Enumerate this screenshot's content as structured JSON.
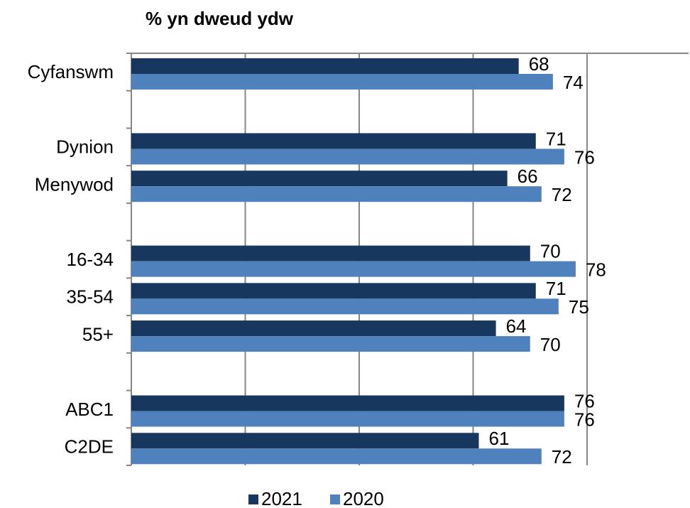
{
  "chart_data": {
    "type": "bar",
    "orientation": "horizontal",
    "title": "% yn dweud ydw",
    "categories": [
      "Cyfanswm",
      null,
      "Dynion",
      "Menywod",
      null,
      "16-34",
      "35-54",
      "55+",
      null,
      "ABC1",
      "C2DE"
    ],
    "series": [
      {
        "name": "2021",
        "color": "#17375e",
        "values": [
          68,
          null,
          71,
          66,
          null,
          70,
          71,
          64,
          null,
          76,
          61
        ]
      },
      {
        "name": "2020",
        "color": "#4f81bd",
        "values": [
          74,
          null,
          76,
          72,
          null,
          78,
          75,
          70,
          null,
          76,
          72
        ]
      }
    ],
    "xlim": [
      0,
      80
    ],
    "xticks": [
      0,
      20,
      40,
      60,
      80
    ],
    "grid": true,
    "legend": "bottom"
  }
}
